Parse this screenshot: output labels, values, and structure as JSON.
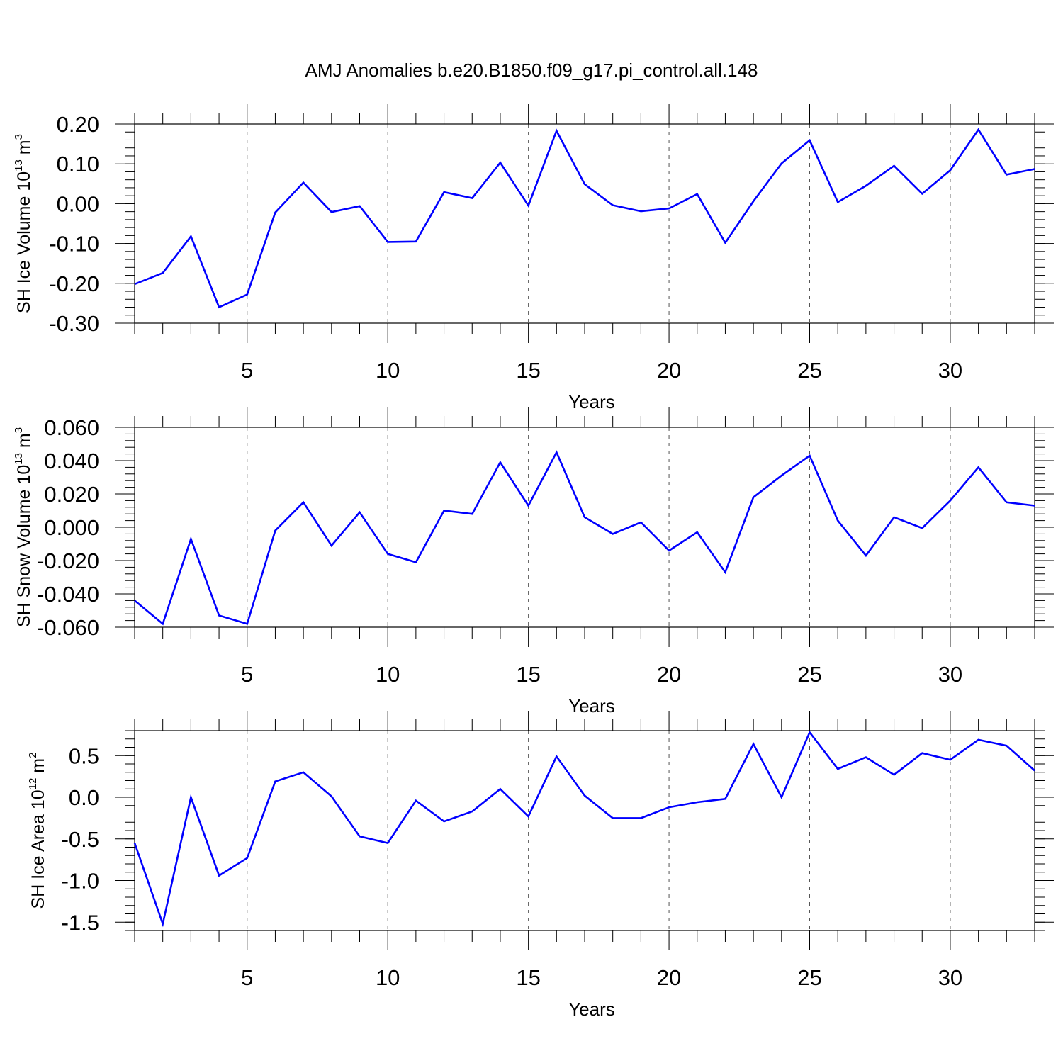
{
  "figure_title": "AMJ Anomalies b.e20.B1850.f09_g17.pi_control.all.148",
  "colors": {
    "line": "#0000ff",
    "axis": "#000000",
    "grid": "#555555"
  },
  "chart_data": [
    {
      "type": "line",
      "ylabel": "SH Ice Volume 10",
      "ylabel_exp": "13",
      "ylabel_unit": "m",
      "ylabel_unit_exp": "3",
      "xlabel": "Years",
      "xlim": [
        1,
        33
      ],
      "ylim": [
        -0.3,
        0.2
      ],
      "grid": "vertical dashed at major ticks",
      "xticks": [
        5,
        10,
        15,
        20,
        25,
        30
      ],
      "xtick_labels": [
        "5",
        "10",
        "15",
        "20",
        "25",
        "30"
      ],
      "yticks": [
        -0.3,
        -0.2,
        -0.1,
        0.0,
        0.1,
        0.2
      ],
      "ytick_labels": [
        "-0.30",
        "-0.20",
        "-0.10",
        "0.00",
        "0.10",
        "0.20"
      ],
      "x": [
        1,
        2,
        3,
        4,
        5,
        6,
        7,
        8,
        9,
        10,
        11,
        12,
        13,
        14,
        15,
        16,
        17,
        18,
        19,
        20,
        21,
        22,
        23,
        24,
        25,
        26,
        27,
        28,
        29,
        30,
        31,
        32,
        33
      ],
      "values": [
        -0.202,
        -0.174,
        -0.082,
        -0.26,
        -0.228,
        -0.022,
        0.053,
        -0.021,
        -0.006,
        -0.096,
        -0.095,
        0.029,
        0.014,
        0.103,
        -0.005,
        0.183,
        0.049,
        -0.004,
        -0.019,
        -0.012,
        0.024,
        -0.098,
        0.006,
        0.101,
        0.159,
        0.004,
        0.045,
        0.095,
        0.025,
        0.084,
        0.186,
        0.073,
        0.087
      ]
    },
    {
      "type": "line",
      "ylabel": "SH Snow Volume 10",
      "ylabel_exp": "13",
      "ylabel_unit": "m",
      "ylabel_unit_exp": "3",
      "xlabel": "Years",
      "xlim": [
        1,
        33
      ],
      "ylim": [
        -0.06,
        0.06
      ],
      "grid": "vertical dashed at major ticks",
      "xticks": [
        5,
        10,
        15,
        20,
        25,
        30
      ],
      "xtick_labels": [
        "5",
        "10",
        "15",
        "20",
        "25",
        "30"
      ],
      "yticks": [
        -0.06,
        -0.04,
        -0.02,
        0.0,
        0.02,
        0.04,
        0.06
      ],
      "ytick_labels": [
        "-0.060",
        "-0.040",
        "-0.020",
        "0.000",
        "0.020",
        "0.040",
        "0.060"
      ],
      "x": [
        1,
        2,
        3,
        4,
        5,
        6,
        7,
        8,
        9,
        10,
        11,
        12,
        13,
        14,
        15,
        16,
        17,
        18,
        19,
        20,
        21,
        22,
        23,
        24,
        25,
        26,
        27,
        28,
        29,
        30,
        31,
        32,
        33
      ],
      "values": [
        -0.044,
        -0.058,
        -0.007,
        -0.053,
        -0.058,
        -0.002,
        0.015,
        -0.011,
        0.009,
        -0.016,
        -0.021,
        0.01,
        0.008,
        0.039,
        0.013,
        0.045,
        0.006,
        -0.004,
        0.003,
        -0.014,
        -0.003,
        -0.027,
        0.018,
        0.031,
        0.043,
        0.004,
        -0.017,
        0.006,
        -0.0005,
        0.016,
        0.036,
        0.015,
        0.013
      ]
    },
    {
      "type": "line",
      "ylabel": "SH Ice Area 10",
      "ylabel_exp": "12",
      "ylabel_unit": "m",
      "ylabel_unit_exp": "2",
      "xlabel": "Years",
      "xlim": [
        1,
        33
      ],
      "ylim": [
        -1.6,
        0.8
      ],
      "grid": "vertical dashed at major ticks",
      "xticks": [
        5,
        10,
        15,
        20,
        25,
        30
      ],
      "xtick_labels": [
        "5",
        "10",
        "15",
        "20",
        "25",
        "30"
      ],
      "yticks": [
        -1.5,
        -1.0,
        -0.5,
        0.0,
        0.5
      ],
      "ytick_labels": [
        "-1.5",
        "-1.0",
        "-0.5",
        "0.0",
        "0.5"
      ],
      "x": [
        1,
        2,
        3,
        4,
        5,
        6,
        7,
        8,
        9,
        10,
        11,
        12,
        13,
        14,
        15,
        16,
        17,
        18,
        19,
        20,
        21,
        22,
        23,
        24,
        25,
        26,
        27,
        28,
        29,
        30,
        31,
        32,
        33
      ],
      "values": [
        -0.55,
        -1.52,
        0.0,
        -0.94,
        -0.73,
        0.19,
        0.3,
        0.01,
        -0.47,
        -0.55,
        -0.04,
        -0.29,
        -0.17,
        0.1,
        -0.23,
        0.49,
        0.02,
        -0.25,
        -0.25,
        -0.12,
        -0.06,
        -0.02,
        0.64,
        0.0,
        0.78,
        0.34,
        0.48,
        0.27,
        0.53,
        0.45,
        0.69,
        0.62,
        0.32
      ]
    }
  ]
}
